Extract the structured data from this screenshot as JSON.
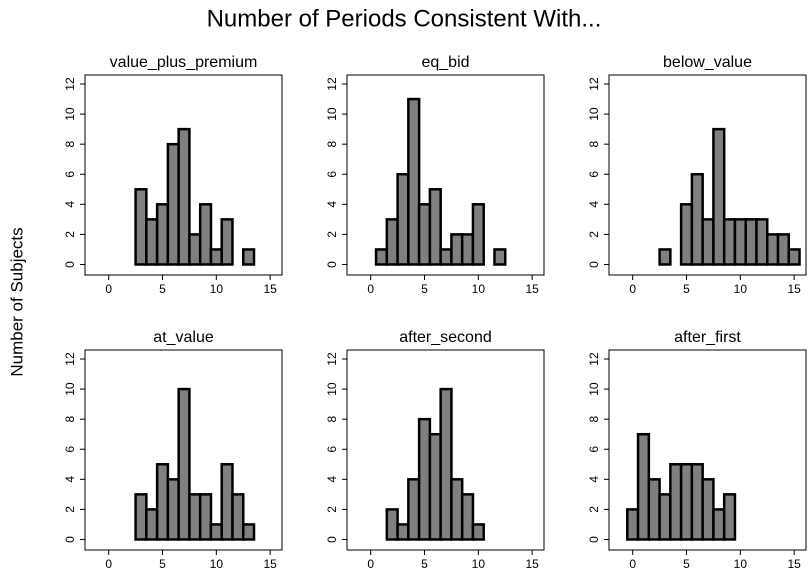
{
  "title": "Number of Periods Consistent With...",
  "y_label": "Number of Subjects",
  "chart_data": [
    {
      "type": "histogram",
      "title": "value_plus_premium",
      "color": "#808080",
      "bins": [
        2.5,
        3.5,
        4.5,
        5.5,
        6.5,
        7.5,
        8.5,
        9.5,
        10.5,
        11.5,
        12.5,
        13.5
      ],
      "counts": [
        5,
        3,
        4,
        8,
        9,
        2,
        4,
        1,
        3,
        0,
        1
      ],
      "xlim": [
        -2.2,
        16.1
      ],
      "ylim": [
        -0.7,
        12.6
      ],
      "xticks": [
        0,
        5,
        10,
        15
      ],
      "yticks": [
        0,
        2,
        4,
        6,
        8,
        10,
        12
      ]
    },
    {
      "type": "histogram",
      "title": "eq_bid",
      "color": "#808080",
      "bins": [
        0.5,
        1.5,
        2.5,
        3.5,
        4.5,
        5.5,
        6.5,
        7.5,
        8.5,
        9.5,
        10.5,
        11.5,
        12.5
      ],
      "counts": [
        1,
        3,
        6,
        11,
        4,
        5,
        1,
        2,
        2,
        4,
        0,
        1
      ],
      "xlim": [
        -2.2,
        16.1
      ],
      "ylim": [
        -0.7,
        12.6
      ],
      "xticks": [
        0,
        5,
        10,
        15
      ],
      "yticks": [
        0,
        2,
        4,
        6,
        8,
        10,
        12
      ]
    },
    {
      "type": "histogram",
      "title": "below_value",
      "color": "#808080",
      "bins": [
        2.5,
        3.5,
        4.5,
        5.5,
        6.5,
        7.5,
        8.5,
        9.5,
        10.5,
        11.5,
        12.5,
        13.5,
        14.5,
        15.5
      ],
      "counts": [
        1,
        0,
        4,
        6,
        3,
        9,
        3,
        3,
        3,
        3,
        2,
        2,
        1
      ],
      "xlim": [
        -2.2,
        16.1
      ],
      "ylim": [
        -0.7,
        12.6
      ],
      "xticks": [
        0,
        5,
        10,
        15
      ],
      "yticks": [
        0,
        2,
        4,
        6,
        8,
        10,
        12
      ]
    },
    {
      "type": "histogram",
      "title": "at_value",
      "color": "#808080",
      "bins": [
        2.5,
        3.5,
        4.5,
        5.5,
        6.5,
        7.5,
        8.5,
        9.5,
        10.5,
        11.5,
        12.5,
        13.5
      ],
      "counts": [
        3,
        2,
        5,
        4,
        10,
        3,
        3,
        1,
        5,
        3,
        1
      ],
      "xlim": [
        -2.2,
        16.1
      ],
      "ylim": [
        -0.7,
        12.6
      ],
      "xticks": [
        0,
        5,
        10,
        15
      ],
      "yticks": [
        0,
        2,
        4,
        6,
        8,
        10,
        12
      ]
    },
    {
      "type": "histogram",
      "title": "after_second",
      "color": "#808080",
      "bins": [
        1.5,
        2.5,
        3.5,
        4.5,
        5.5,
        6.5,
        7.5,
        8.5,
        9.5,
        10.5
      ],
      "counts": [
        2,
        1,
        4,
        8,
        7,
        10,
        4,
        3,
        1
      ],
      "xlim": [
        -2.2,
        16.1
      ],
      "ylim": [
        -0.7,
        12.6
      ],
      "xticks": [
        0,
        5,
        10,
        15
      ],
      "yticks": [
        0,
        2,
        4,
        6,
        8,
        10,
        12
      ]
    },
    {
      "type": "histogram",
      "title": "after_first",
      "color": "#808080",
      "bins": [
        -0.5,
        0.5,
        1.5,
        2.5,
        3.5,
        4.5,
        5.5,
        6.5,
        7.5,
        8.5,
        9.5
      ],
      "counts": [
        2,
        7,
        4,
        3,
        5,
        5,
        5,
        4,
        2,
        3
      ],
      "xlim": [
        -2.2,
        16.1
      ],
      "ylim": [
        -0.7,
        12.6
      ],
      "xticks": [
        0,
        5,
        10,
        15
      ],
      "yticks": [
        0,
        2,
        4,
        6,
        8,
        10,
        12
      ]
    }
  ]
}
